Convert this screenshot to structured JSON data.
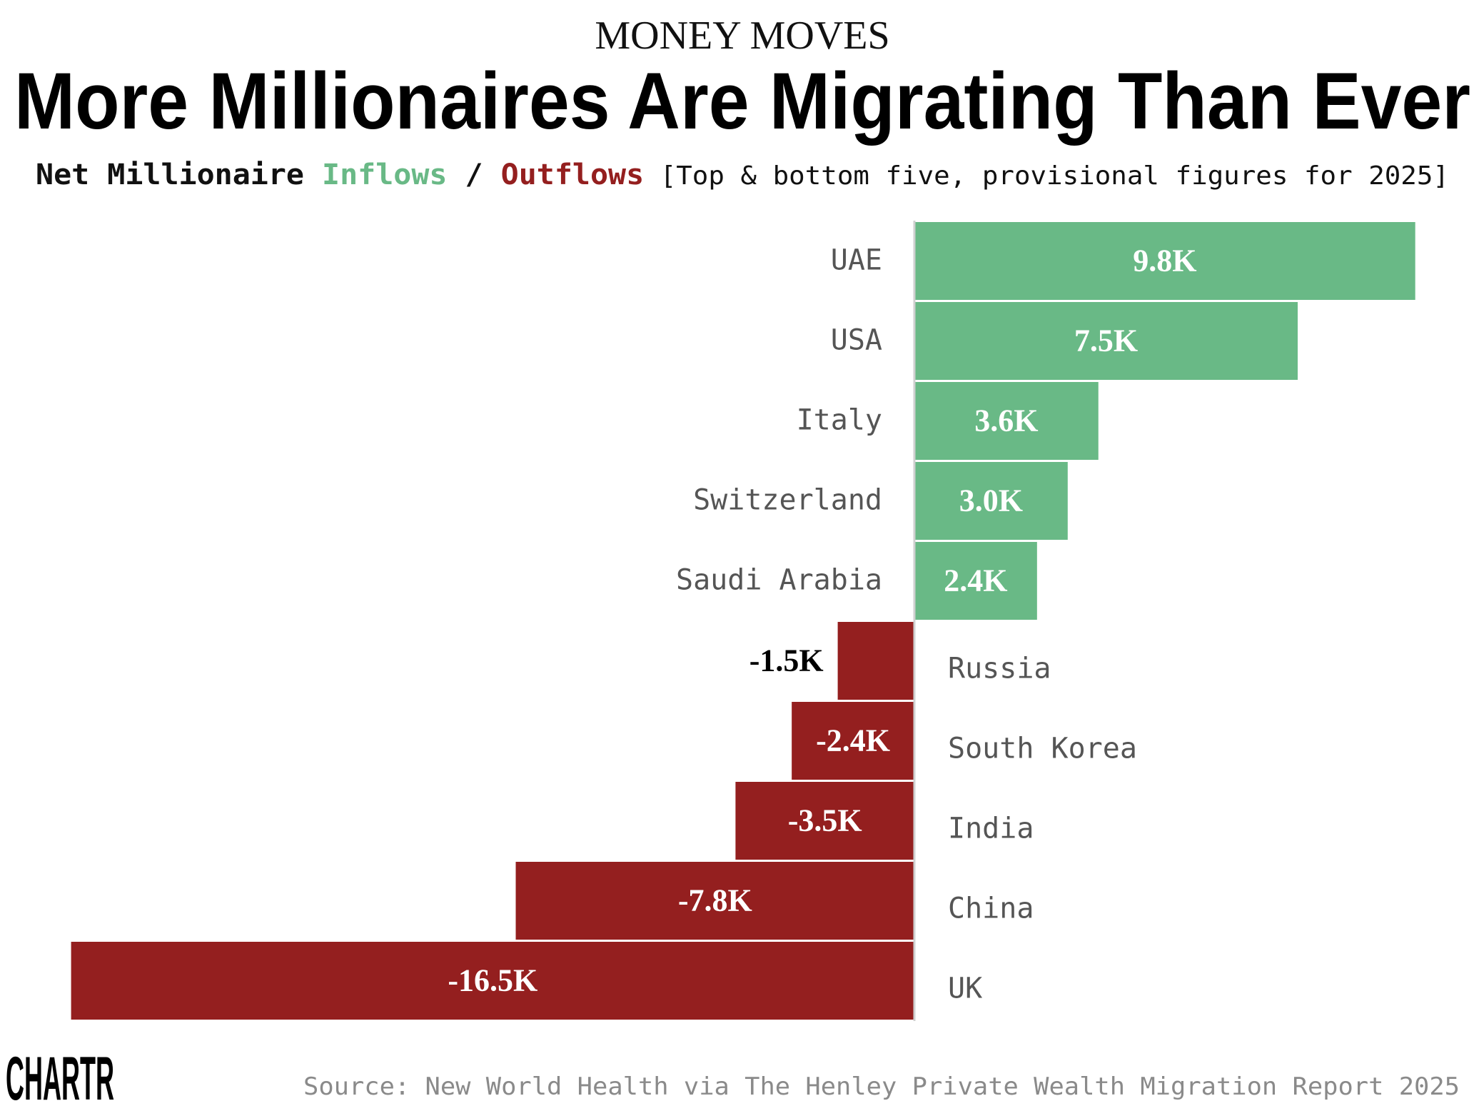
{
  "header": {
    "kicker": "MONEY MOVES",
    "title": "More Millionaires Are Migrating Than Ever",
    "subtitle_prefix": "Net Millionaire ",
    "subtitle_inflows": "Inflows",
    "subtitle_sep": " / ",
    "subtitle_outflows": "Outflows",
    "subtitle_note": " [Top & bottom five, provisional figures for 2025]"
  },
  "footer": {
    "source": "Source: New World Health via The Henley Private Wealth Migration Report 2025",
    "logo": "CHARTR"
  },
  "colors": {
    "inflow": "#69b986",
    "outflow": "#941f1f",
    "axis": "#d0d0d0"
  },
  "chart_data": {
    "type": "bar",
    "orientation": "horizontal",
    "unit": "thousand millionaires",
    "categories": [
      "UAE",
      "USA",
      "Italy",
      "Switzerland",
      "Saudi Arabia",
      "Russia",
      "South Korea",
      "India",
      "China",
      "UK"
    ],
    "values": [
      9.8,
      7.5,
      3.6,
      3.0,
      2.4,
      -1.5,
      -2.4,
      -3.5,
      -7.8,
      -16.5
    ],
    "labels": [
      "9.8K",
      "7.5K",
      "3.6K",
      "3.0K",
      "2.4K",
      "-1.5K",
      "-2.4K",
      "-3.5K",
      "-7.8K",
      "-16.5K"
    ],
    "grid": false
  }
}
